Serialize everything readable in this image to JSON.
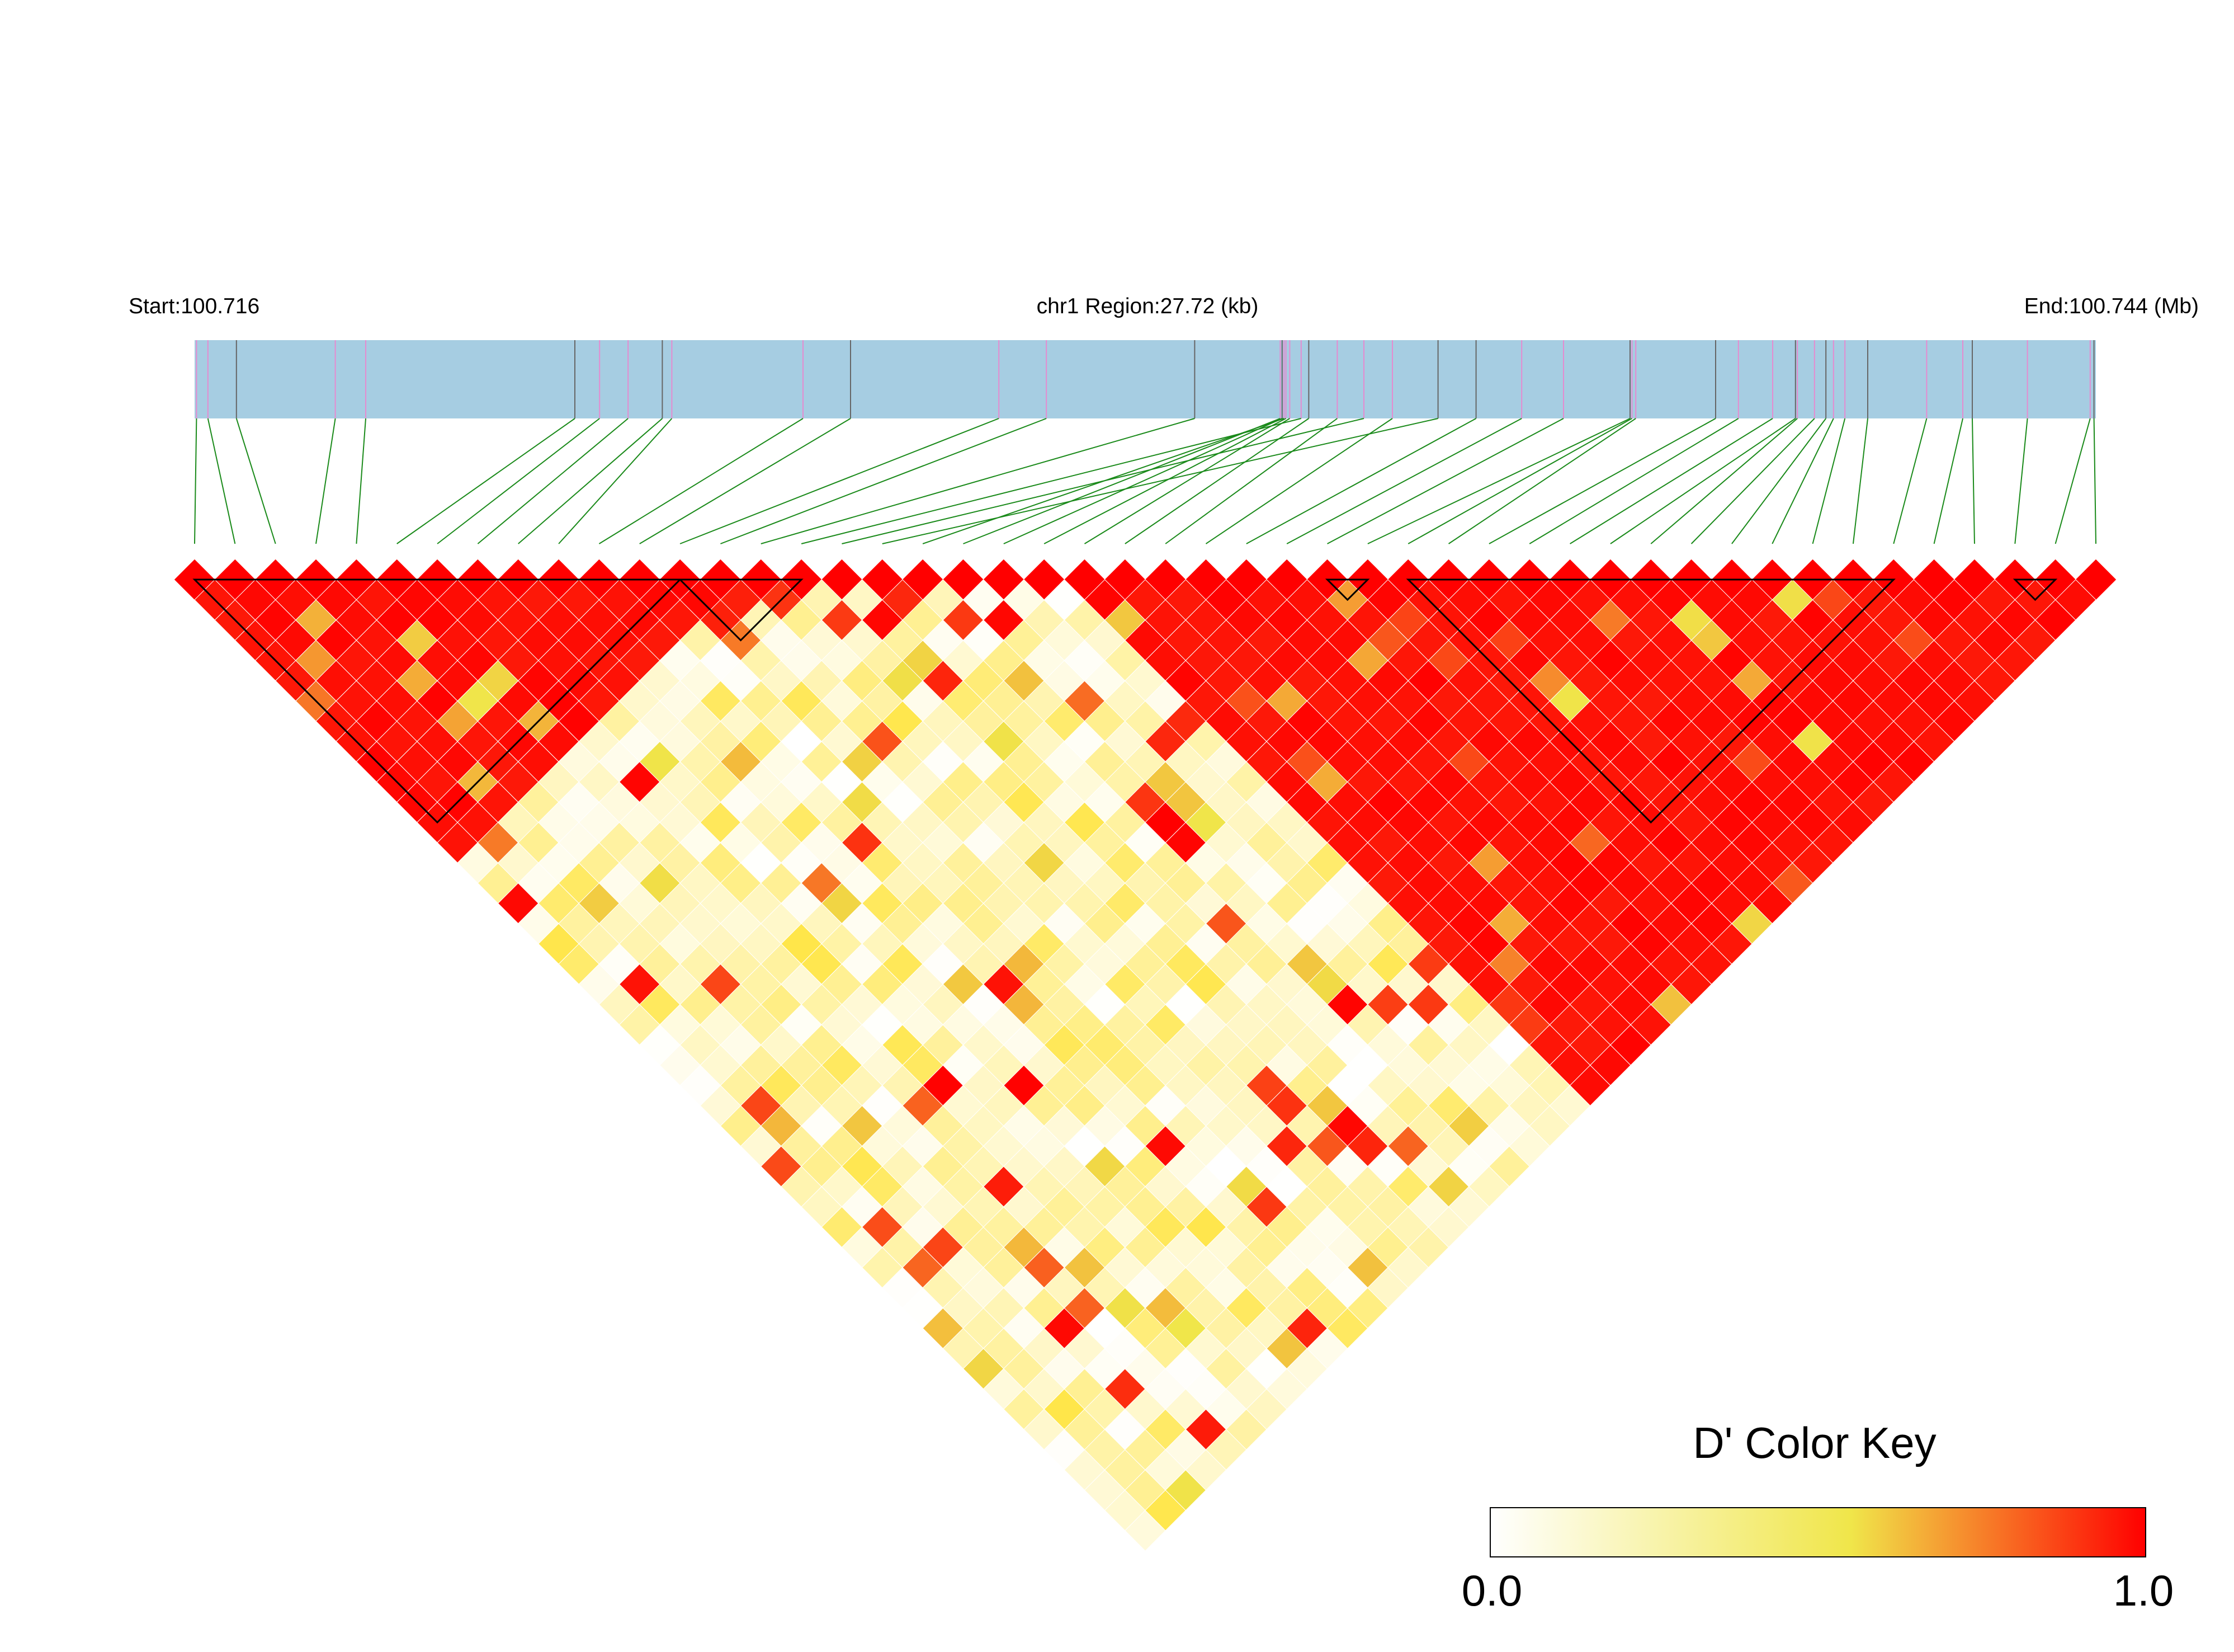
{
  "header": {
    "start_label": "Start:100.716",
    "region_label": "chr1 Region:27.72 (kb)",
    "end_label": "End:100.744 (Mb)"
  },
  "legend": {
    "title": "D' Color Key",
    "min_label": "0.0",
    "max_label": "1.0"
  },
  "colors": {
    "track_fill": "#a6cde2",
    "marker_pink": "#e58bd0",
    "marker_gray": "#666666",
    "connector_green": "#1a8a1a",
    "ld_red": "#ff0000",
    "ld_orange": "#f07a22",
    "ld_yellow": "#f0e64a",
    "ld_white": "#ffffff"
  },
  "chart_data": {
    "type": "heatmap",
    "title": "",
    "region": {
      "chromosome": "chr1",
      "start_mb": 100.716,
      "end_mb": 100.744,
      "length_kb": 27.72
    },
    "n_snps": 48,
    "snp_positions_fraction": [
      0.001,
      0.007,
      0.022,
      0.074,
      0.09,
      0.2,
      0.213,
      0.228,
      0.246,
      0.251,
      0.32,
      0.345,
      0.423,
      0.448,
      0.526,
      0.582,
      0.615,
      0.654,
      0.573,
      0.571,
      0.572,
      0.574,
      0.576,
      0.586,
      0.601,
      0.63,
      0.674,
      0.698,
      0.72,
      0.755,
      0.756,
      0.758,
      0.8,
      0.812,
      0.83,
      0.842,
      0.843,
      0.852,
      0.858,
      0.862,
      0.868,
      0.88,
      0.911,
      0.93,
      0.935,
      0.964,
      0.997,
      0.999
    ],
    "color_scale": {
      "min": 0.0,
      "max": 1.0,
      "stops": [
        "#ffffff",
        "#f0e64a",
        "#ff0000"
      ]
    },
    "ld_blocks": [
      {
        "first_snp": 1,
        "last_snp": 13
      },
      {
        "first_snp": 13,
        "last_snp": 16
      },
      {
        "first_snp": 29,
        "last_snp": 30
      },
      {
        "first_snp": 31,
        "last_snp": 43
      },
      {
        "first_snp": 46,
        "last_snp": 47
      }
    ],
    "high_ld_snp_groups": [
      {
        "first_snp": 1,
        "last_snp": 14
      },
      {
        "first_snp": 23,
        "last_snp": 48
      }
    ]
  }
}
